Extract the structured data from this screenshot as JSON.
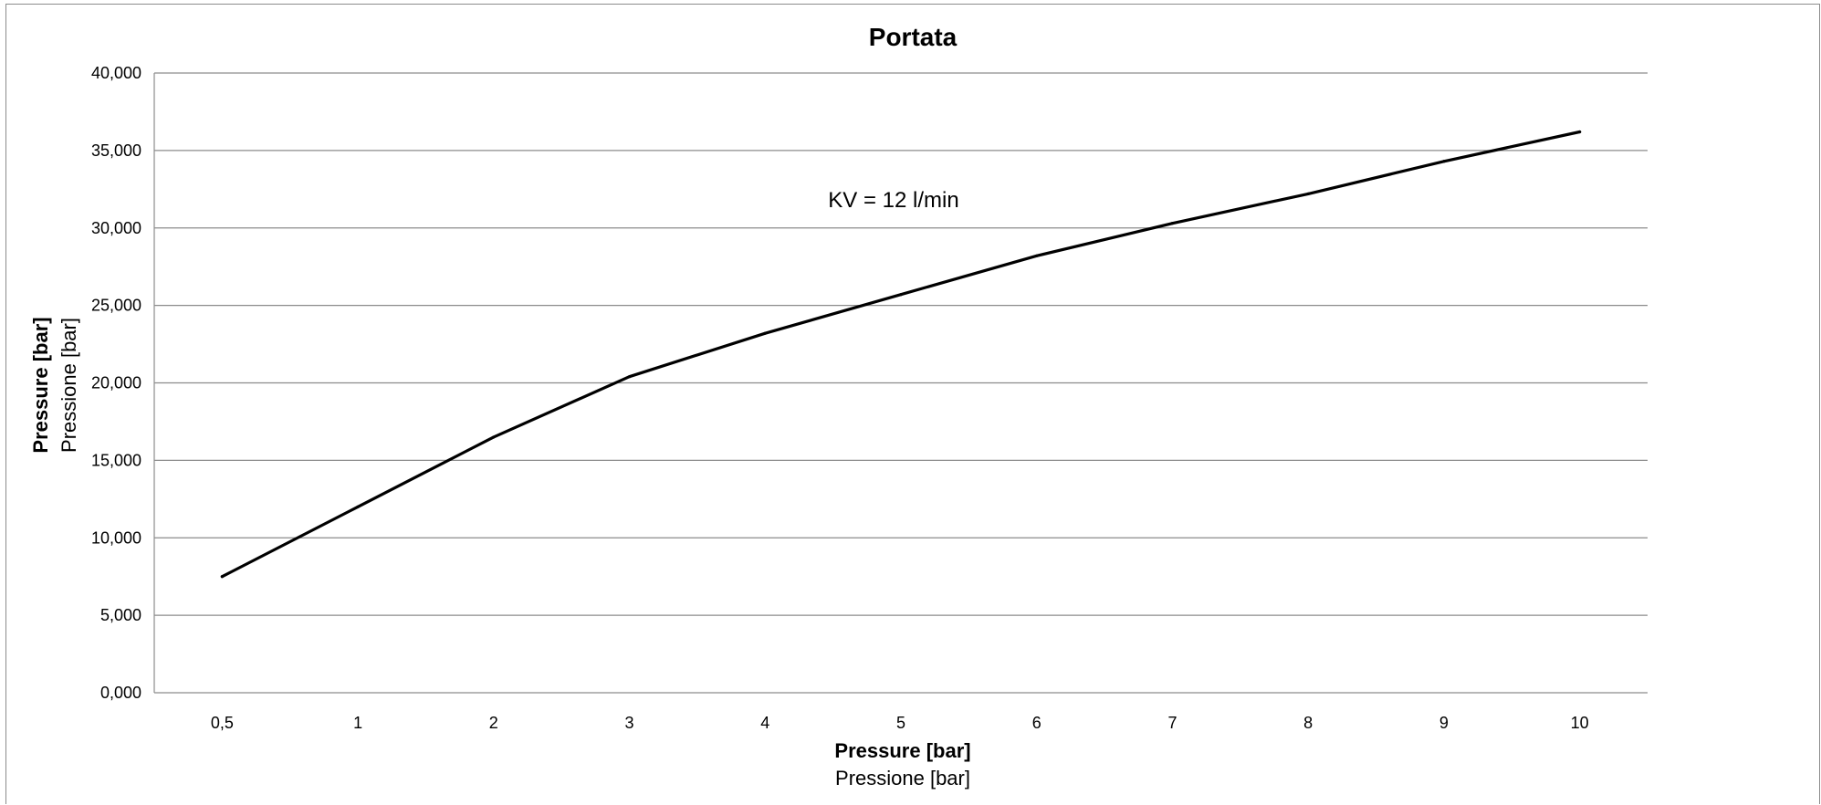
{
  "chart_data": {
    "type": "line",
    "title": "Portata",
    "xlabel": "Pressure [bar]",
    "xlabel_secondary": "Pressione [bar]",
    "ylabel": "Pressure [bar]",
    "ylabel_secondary": "Pressione [bar]",
    "annotation": "KV = 12 l/min",
    "categories": [
      "0,5",
      "1",
      "2",
      "3",
      "4",
      "5",
      "6",
      "7",
      "8",
      "9",
      "10"
    ],
    "series": [
      {
        "values": [
          7.5,
          12.0,
          16.5,
          20.4,
          23.2,
          25.7,
          28.2,
          30.3,
          32.2,
          34.3,
          36.2
        ]
      }
    ],
    "ylim": [
      0,
      40
    ],
    "yticks": [
      0,
      5,
      10,
      15,
      20,
      25,
      30,
      35,
      40
    ],
    "ytick_labels": [
      "0,000",
      "5,000",
      "10,000",
      "15,000",
      "20,000",
      "25,000",
      "30,000",
      "35,000",
      "40,000"
    ],
    "grid": true,
    "legend": "none",
    "line_color": "#000000",
    "grid_color": "#8c8c8c"
  }
}
